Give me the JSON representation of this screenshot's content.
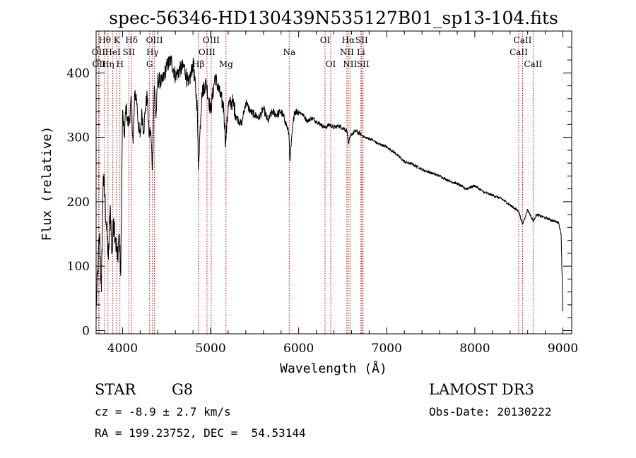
{
  "chart_data": {
    "type": "line",
    "title": "spec-56346-HD130439N535127B01_sp13-104.fits",
    "xlabel": "Wavelength (Å)",
    "ylabel": "Flux (relative)",
    "xlim": [
      3700,
      9100
    ],
    "ylim": [
      -5,
      465
    ],
    "xticks": [
      4000,
      5000,
      6000,
      7000,
      8000,
      9000
    ],
    "yticks": [
      0,
      100,
      200,
      300,
      400
    ],
    "series": [
      {
        "color": "#000000",
        "x": [
          3700,
          3720,
          3740,
          3760,
          3780,
          3800,
          3820,
          3840,
          3860,
          3880,
          3900,
          3920,
          3940,
          3960,
          3980,
          4000,
          4020,
          4040,
          4060,
          4080,
          4100,
          4120,
          4140,
          4160,
          4180,
          4200,
          4220,
          4240,
          4260,
          4280,
          4300,
          4320,
          4340,
          4360,
          4380,
          4400,
          4450,
          4500,
          4550,
          4600,
          4650,
          4700,
          4750,
          4800,
          4850,
          4860,
          4900,
          4950,
          5000,
          5050,
          5100,
          5150,
          5170,
          5200,
          5250,
          5300,
          5350,
          5400,
          5450,
          5500,
          5550,
          5600,
          5650,
          5700,
          5750,
          5800,
          5850,
          5890,
          5900,
          5950,
          6000,
          6050,
          6100,
          6150,
          6200,
          6250,
          6300,
          6350,
          6400,
          6450,
          6500,
          6550,
          6563,
          6600,
          6650,
          6700,
          6750,
          6800,
          6850,
          6900,
          6950,
          7000,
          7100,
          7200,
          7300,
          7400,
          7500,
          7600,
          7700,
          7800,
          7900,
          8000,
          8100,
          8200,
          8300,
          8400,
          8498,
          8542,
          8600,
          8662,
          8700,
          8800,
          8900,
          8950,
          8980,
          9000
        ],
        "values": [
          30,
          95,
          150,
          60,
          240,
          205,
          155,
          110,
          195,
          120,
          175,
          145,
          110,
          150,
          85,
          340,
          300,
          350,
          320,
          330,
          355,
          290,
          370,
          360,
          320,
          300,
          340,
          310,
          345,
          365,
          305,
          310,
          250,
          380,
          330,
          390,
          385,
          410,
          420,
          395,
          405,
          410,
          380,
          415,
          345,
          250,
          370,
          385,
          340,
          395,
          370,
          345,
          290,
          350,
          355,
          330,
          320,
          355,
          340,
          335,
          330,
          345,
          325,
          340,
          335,
          340,
          325,
          305,
          265,
          340,
          340,
          335,
          325,
          330,
          325,
          320,
          315,
          320,
          315,
          318,
          315,
          310,
          290,
          305,
          310,
          305,
          300,
          298,
          295,
          290,
          288,
          285,
          275,
          262,
          258,
          250,
          245,
          240,
          233,
          228,
          220,
          225,
          215,
          210,
          205,
          195,
          185,
          165,
          188,
          170,
          180,
          175,
          170,
          168,
          150,
          30
        ]
      }
    ],
    "line_labels": [
      {
        "wl": 3727,
        "label": "OII",
        "row": 2
      },
      {
        "wl": 3734,
        "label": "OII",
        "row": 3
      },
      {
        "wl": 3798,
        "label": "Hθ",
        "row": 1
      },
      {
        "wl": 3835,
        "label": "Hη",
        "row": 3
      },
      {
        "wl": 3889,
        "label": "HeI",
        "row": 2
      },
      {
        "wl": 3934,
        "label": "K",
        "row": 1
      },
      {
        "wl": 3970,
        "label": "H",
        "row": 3
      },
      {
        "wl": 4072,
        "label": "SII",
        "row": 2
      },
      {
        "wl": 4102,
        "label": "Hδ",
        "row": 1
      },
      {
        "wl": 4340,
        "label": "Hγ",
        "row": 2
      },
      {
        "wl": 4307,
        "label": "G",
        "row": 3
      },
      {
        "wl": 4363,
        "label": "OIII",
        "row": 1
      },
      {
        "wl": 4861,
        "label": "Hβ",
        "row": 3
      },
      {
        "wl": 4959,
        "label": "OIII",
        "row": 2
      },
      {
        "wl": 5007,
        "label": "OIII",
        "row": 1
      },
      {
        "wl": 5175,
        "label": "Mg",
        "row": 3
      },
      {
        "wl": 5893,
        "label": "Na",
        "row": 2
      },
      {
        "wl": 6300,
        "label": "OI",
        "row": 1
      },
      {
        "wl": 6364,
        "label": "OI",
        "row": 3
      },
      {
        "wl": 6548,
        "label": "NII",
        "row": 2
      },
      {
        "wl": 6563,
        "label": "Hα",
        "row": 1
      },
      {
        "wl": 6583,
        "label": "NII",
        "row": 3
      },
      {
        "wl": 6707,
        "label": "Li",
        "row": 2
      },
      {
        "wl": 6716,
        "label": "SII",
        "row": 1
      },
      {
        "wl": 6731,
        "label": "SII",
        "row": 3
      },
      {
        "wl": 8498,
        "label": "CaII",
        "row": 2
      },
      {
        "wl": 8542,
        "label": "CaII",
        "row": 1
      },
      {
        "wl": 8662,
        "label": "CaII",
        "row": 3
      }
    ],
    "marker_color": "#cc0000"
  },
  "info": {
    "object_class": "STAR",
    "subclass": "G8",
    "survey": "LAMOST DR3",
    "cz": "cz = -8.9 ± 2.7 km/s",
    "obs_date": "Obs-Date: 20130222",
    "radec": "RA = 199.23752, DEC =  54.53144"
  }
}
